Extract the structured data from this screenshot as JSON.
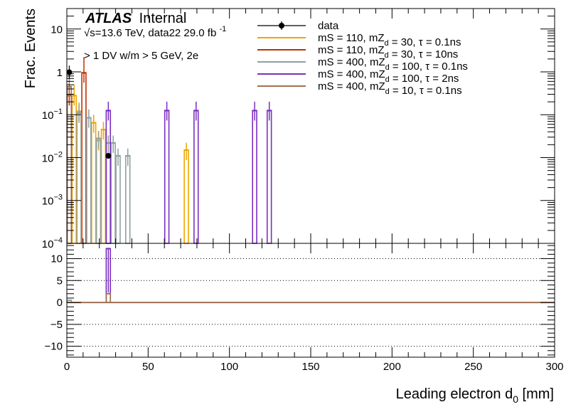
{
  "chart_data": [
    {
      "type": "histogram",
      "panel": "main",
      "title": "",
      "xlabel": "Leading electron d_0 [mm]",
      "ylabel": "Frac. Events",
      "xlim": [
        0,
        300
      ],
      "ylim": [
        0.0001,
        30
      ],
      "yscale": "log",
      "grid": false,
      "legend_placement": "top-right",
      "y_ticks": [
        {
          "v": 10,
          "label": "10"
        },
        {
          "v": 1,
          "label": "1"
        },
        {
          "v": 0.1,
          "base": "10",
          "exp": "−1"
        },
        {
          "v": 0.01,
          "base": "10",
          "exp": "−2"
        },
        {
          "v": 0.001,
          "base": "10",
          "exp": "−3"
        },
        {
          "v": 0.0001,
          "base": "10",
          "exp": "−4"
        }
      ],
      "series": [
        {
          "name": "data",
          "style": "points",
          "color": "#000000",
          "points": [
            {
              "x": 1.5,
              "y": 0.98,
              "err_lo": 0.28,
              "err_hi": 0.42
            },
            {
              "x": 25.5,
              "y": 0.011,
              "err_lo": 0.0,
              "err_hi": 0.0
            }
          ]
        },
        {
          "name": "mS = 110, mZ_d = 30, τ = 0.1ns",
          "style": "bars",
          "color": "#f0a500",
          "bins": [
            {
              "x0": 3,
              "x1": 6,
              "y": 0.28
            },
            {
              "x0": 6,
              "x1": 9,
              "y": 0.12
            },
            {
              "x0": 15,
              "x1": 18,
              "y": 0.065
            },
            {
              "x0": 18,
              "x1": 21,
              "y": 0.025
            },
            {
              "x0": 21,
              "x1": 24,
              "y": 0.045
            },
            {
              "x0": 72,
              "x1": 75,
              "y": 0.015
            }
          ]
        },
        {
          "name": "mS = 110, mZ_d = 30, τ = 10ns",
          "style": "bars",
          "color": "#c03000",
          "bins": [
            {
              "x0": 0,
              "x1": 3,
              "y": 0.28
            },
            {
              "x0": 9,
              "x1": 12,
              "y": 0.95
            }
          ]
        },
        {
          "name": "mS = 400, mZ_d = 100, τ = 0.1ns",
          "style": "bars",
          "color": "#8fa0a0",
          "bins": [
            {
              "x0": 6,
              "x1": 9,
              "y": 0.11
            },
            {
              "x0": 12,
              "x1": 15,
              "y": 0.085
            },
            {
              "x0": 18,
              "x1": 21,
              "y": 0.028
            },
            {
              "x0": 24,
              "x1": 27,
              "y": 0.022
            },
            {
              "x0": 27,
              "x1": 30,
              "y": 0.022
            },
            {
              "x0": 30,
              "x1": 33,
              "y": 0.011
            },
            {
              "x0": 36,
              "x1": 39,
              "y": 0.011
            }
          ]
        },
        {
          "name": "mS = 400, mZ_d = 100, τ = 2ns",
          "style": "bars",
          "color": "#7b2fbf",
          "bins": [
            {
              "x0": 24,
              "x1": 27,
              "y": 0.125
            },
            {
              "x0": 60,
              "x1": 63,
              "y": 0.125
            },
            {
              "x0": 78,
              "x1": 81,
              "y": 0.125
            },
            {
              "x0": 114,
              "x1": 117,
              "y": 0.125
            },
            {
              "x0": 123,
              "x1": 126,
              "y": 0.125
            }
          ]
        },
        {
          "name": "mS = 400, mZ_d = 10, τ = 0.1ns",
          "style": "bars",
          "color": "#a07050",
          "bins": [
            {
              "x0": 0,
              "x1": 3,
              "y": 0.45
            }
          ]
        }
      ],
      "annotations": {
        "atlas": "ATLAS",
        "internal": "Internal",
        "energy_pre": "√s=13.6 TeV, data22 29.0 fb",
        "energy_sup": "-1",
        "selection": "> 1 DV w/m > 5 GeV, 2e"
      },
      "legend": [
        {
          "parts": [
            {
              "t": "data"
            }
          ]
        },
        {
          "parts": [
            {
              "t": "mS = 110, mZ"
            },
            {
              "sub": "d"
            },
            {
              "t": " = 30, τ = 0.1ns"
            }
          ]
        },
        {
          "parts": [
            {
              "t": "mS = 110, mZ"
            },
            {
              "sub": "d"
            },
            {
              "t": " = 30, τ = 10ns"
            }
          ]
        },
        {
          "parts": [
            {
              "t": "mS = 400, mZ"
            },
            {
              "sub": "d"
            },
            {
              "t": " = 100, τ = 0.1ns"
            }
          ]
        },
        {
          "parts": [
            {
              "t": "mS = 400, mZ"
            },
            {
              "sub": "d"
            },
            {
              "t": " = 100, τ = 2ns"
            }
          ]
        },
        {
          "parts": [
            {
              "t": "mS = 400, mZ"
            },
            {
              "sub": "d"
            },
            {
              "t": " = 10, τ = 0.1ns"
            }
          ]
        }
      ]
    },
    {
      "type": "histogram",
      "panel": "ratio",
      "xlabel": "Leading electron d_0 [mm]",
      "ylabel": "",
      "xlim": [
        0,
        300
      ],
      "ylim": [
        -12.5,
        13.5
      ],
      "grid": false,
      "reference_lines": [
        10,
        5,
        -5,
        -10
      ],
      "y_ticks": [
        {
          "v": 10,
          "label": "10"
        },
        {
          "v": 5,
          "label": "5"
        },
        {
          "v": 0,
          "label": "0"
        },
        {
          "v": -5,
          "label": "−5"
        },
        {
          "v": -10,
          "label": "−10"
        }
      ],
      "x_ticks": [
        {
          "v": 0,
          "label": "0"
        },
        {
          "v": 50,
          "label": "50"
        },
        {
          "v": 100,
          "label": "100"
        },
        {
          "v": 150,
          "label": "150"
        },
        {
          "v": 200,
          "label": "200"
        },
        {
          "v": 250,
          "label": "250"
        },
        {
          "v": 300,
          "label": "300"
        }
      ],
      "baseline": {
        "y": 0,
        "color": "#a07050"
      },
      "series": [
        {
          "name": "mS = 400, mZ_d = 100, τ = 2ns",
          "color": "#7b2fbf",
          "bins": [
            {
              "x0": 24,
              "x1": 27,
              "y": 12.3,
              "err_lo": 5,
              "err_hi": 0
            }
          ]
        },
        {
          "name": "mS = 400, mZ_d = 10, τ = 0.1ns",
          "color": "#a07050",
          "bins": [
            {
              "x0": 24,
              "x1": 27,
              "y": 2.0,
              "err_lo": 0,
              "err_hi": 0
            }
          ]
        },
        {
          "name": "mS = 400, mZ_d = 100, τ = 0.1ns",
          "color": "#8fa0a0",
          "bins": [
            {
              "x0": 0,
              "x1": 3,
              "y": 0.5,
              "err_lo": 0,
              "err_hi": 0
            }
          ]
        }
      ]
    }
  ]
}
